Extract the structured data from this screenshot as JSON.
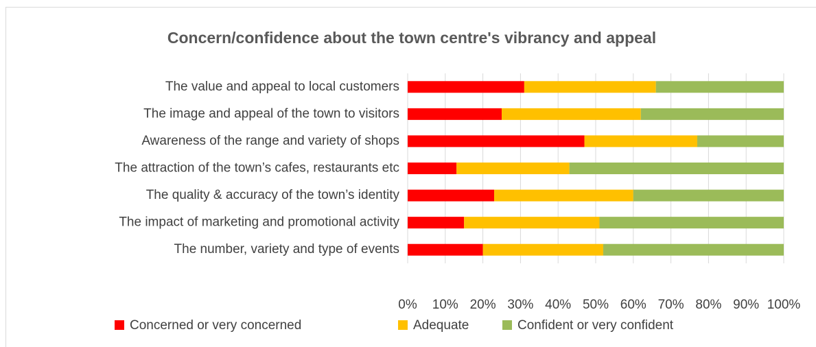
{
  "chart_data": {
    "type": "stacked_barh",
    "title": "Concern/confidence  about the town centre's vibrancy and appeal",
    "categories": [
      "The value and appeal to local customers",
      "The image and appeal of the town to visitors",
      "Awareness of the range and variety of shops",
      "The attraction of the town’s cafes, restaurants etc",
      "The quality & accuracy of the town’s  identity",
      "The impact of marketing and promotional activity",
      "The number, variety and type of events"
    ],
    "series": [
      {
        "name": "Concerned or very concerned",
        "color": "#ff0000",
        "values": [
          31,
          25,
          47,
          13,
          23,
          15,
          20
        ]
      },
      {
        "name": "Adequate",
        "color": "#ffc000",
        "values": [
          35,
          37,
          30,
          30,
          37,
          36,
          32
        ]
      },
      {
        "name": "Confident or very confident",
        "color": "#9bbb59",
        "values": [
          34,
          38,
          23,
          57,
          40,
          49,
          48
        ]
      }
    ],
    "xlim": [
      0,
      100
    ],
    "xticks": [
      {
        "value": 0,
        "label": "0%"
      },
      {
        "value": 10,
        "label": "10%"
      },
      {
        "value": 20,
        "label": "20%"
      },
      {
        "value": 30,
        "label": "30%"
      },
      {
        "value": 40,
        "label": "40%"
      },
      {
        "value": 50,
        "label": "50%"
      },
      {
        "value": 60,
        "label": "60%"
      },
      {
        "value": 70,
        "label": "70%"
      },
      {
        "value": 80,
        "label": "80%"
      },
      {
        "value": 90,
        "label": "90%"
      },
      {
        "value": 100,
        "label": "100%"
      }
    ],
    "grid": true,
    "legend": "bottom"
  }
}
